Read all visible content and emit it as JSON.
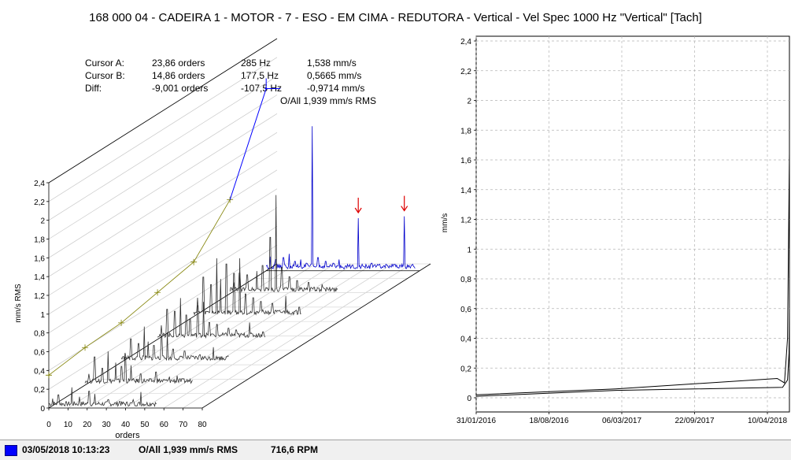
{
  "title": "168 000 04 - CADEIRA 1 - MOTOR - 7 - ESO - EM CIMA - REDUTORA - Vertical - Vel Spec 1000 Hz \"Vertical\" [Tach]",
  "cursors": [
    {
      "label": "Cursor A:",
      "order": "23,86 orders",
      "freq": "285 Hz",
      "amp": "1,538 mm/s"
    },
    {
      "label": "Cursor B:",
      "order": "14,86 orders",
      "freq": "177,5 Hz",
      "amp": "0,5665 mm/s"
    },
    {
      "label": "Diff:",
      "order": "-9,001 orders",
      "freq": "-107,5 Hz",
      "amp": "-0,9714 mm/s"
    }
  ],
  "overall_text": "O/All 1,939 mm/s RMS",
  "status_bar": {
    "date": "03/05/2018 10:13:23",
    "overall": "O/All 1,939 mm/s RMS",
    "rpm": "716,6 RPM",
    "swatch_color": "#0000ff"
  },
  "chart_data": [
    {
      "type": "line",
      "subtype": "waterfall-3d",
      "xlabel": "orders",
      "ylabel": "mm/s RMS",
      "x_ticks": [
        "0",
        "10",
        "20",
        "30",
        "40",
        "50",
        "60",
        "70",
        "80"
      ],
      "xlim": [
        0,
        80
      ],
      "y_ticks": [
        "0",
        "0,2",
        "0,4",
        "0,6",
        "0,8",
        "1",
        "1,2",
        "1,4",
        "1,6",
        "1,8",
        "2",
        "2,2",
        "2,4"
      ],
      "ylim": [
        0,
        2.4
      ],
      "grid": true,
      "active_color": "#0000cc",
      "inactive_color": "#303030",
      "overall_trend_color": "#808000",
      "highlight_color": "#0000ff",
      "cursor_marker_color": "#dd0000",
      "series": [
        {
          "peaks": [
            [
              2,
              0.1
            ],
            [
              5,
              0.14
            ],
            [
              12,
              0.22
            ],
            [
              16,
              0.12
            ],
            [
              21,
              0.18
            ],
            [
              24,
              0.15
            ],
            [
              31,
              0.09
            ],
            [
              37,
              0.07
            ],
            [
              44,
              0.09
            ],
            [
              48,
              0.17
            ],
            [
              54,
              0.05
            ]
          ]
        },
        {
          "peaks": [
            [
              2,
              0.12
            ],
            [
              5,
              0.3
            ],
            [
              9,
              0.18
            ],
            [
              12,
              0.36
            ],
            [
              16,
              0.24
            ],
            [
              19,
              0.2
            ],
            [
              21,
              0.3
            ],
            [
              24,
              0.21
            ],
            [
              29,
              0.12
            ],
            [
              37,
              0.14
            ],
            [
              44,
              0.09
            ],
            [
              48,
              0.1
            ]
          ]
        },
        {
          "peaks": [
            [
              2,
              0.1
            ],
            [
              5,
              0.25
            ],
            [
              9,
              0.2
            ],
            [
              12,
              0.38
            ],
            [
              14,
              0.22
            ],
            [
              17,
              0.18
            ],
            [
              21,
              0.28
            ],
            [
              24,
              0.32
            ],
            [
              27,
              0.14
            ],
            [
              33,
              0.12
            ],
            [
              41,
              0.08
            ],
            [
              48,
              0.16
            ],
            [
              55,
              0.06
            ]
          ]
        },
        {
          "peaks": [
            [
              2,
              0.15
            ],
            [
              5,
              0.32
            ],
            [
              9,
              0.3
            ],
            [
              12,
              0.44
            ],
            [
              15,
              0.26
            ],
            [
              17,
              0.22
            ],
            [
              21,
              0.36
            ],
            [
              24,
              0.4
            ],
            [
              27,
              0.18
            ],
            [
              31,
              0.16
            ],
            [
              37,
              0.12
            ],
            [
              41,
              0.1
            ],
            [
              48,
              0.18
            ],
            [
              55,
              0.08
            ]
          ]
        },
        {
          "peaks": [
            [
              2,
              0.2
            ],
            [
              5,
              0.42
            ],
            [
              9,
              0.34
            ],
            [
              12,
              0.62
            ],
            [
              14,
              0.4
            ],
            [
              17,
              0.56
            ],
            [
              21,
              0.46
            ],
            [
              24,
              0.62
            ],
            [
              27,
              0.24
            ],
            [
              31,
              0.2
            ],
            [
              35,
              0.16
            ],
            [
              41,
              0.14
            ],
            [
              48,
              0.22
            ],
            [
              55,
              0.1
            ]
          ]
        },
        {
          "peaks": [
            [
              2,
              0.12
            ],
            [
              5,
              0.22
            ],
            [
              9,
              0.2
            ],
            [
              14,
              0.24
            ],
            [
              17,
              0.3
            ],
            [
              21,
              0.6
            ],
            [
              24,
              1.05
            ],
            [
              27,
              0.28
            ],
            [
              31,
              0.18
            ],
            [
              35,
              0.14
            ],
            [
              41,
              0.12
            ],
            [
              48,
              0.1
            ]
          ]
        },
        {
          "active": true,
          "peaks": [
            [
              2,
              0.15
            ],
            [
              5,
              0.12
            ],
            [
              9,
              0.14
            ],
            [
              12,
              0.18
            ],
            [
              15,
              0.1
            ],
            [
              18,
              0.12
            ],
            [
              21,
              0.08
            ],
            [
              24,
              1.54
            ],
            [
              27,
              0.14
            ],
            [
              31,
              0.1
            ],
            [
              35,
              0.08
            ],
            [
              38,
              0.12
            ],
            [
              45,
              0.06
            ],
            [
              48,
              0.56
            ],
            [
              55,
              0.08
            ],
            [
              63,
              0.06
            ],
            [
              72,
              0.58
            ],
            [
              78,
              0.08
            ]
          ]
        }
      ],
      "overall_points": [
        0.35,
        0.4,
        0.42,
        0.5,
        0.58,
        1.0,
        1.94
      ],
      "cursor_marker_orders": [
        48,
        72
      ]
    },
    {
      "type": "line",
      "subtype": "trend",
      "ylabel": "mm/s",
      "x_ticks": [
        "31/01/2016",
        "18/08/2016",
        "06/03/2017",
        "22/09/2017",
        "10/04/2018"
      ],
      "xlim": [
        "2016-01-31",
        "2018-05-03"
      ],
      "y_ticks": [
        "0",
        "0,2",
        "0,4",
        "0,6",
        "0,8",
        "1",
        "1,2",
        "1,4",
        "1,6",
        "1,8",
        "2",
        "2,2",
        "2,4"
      ],
      "ylim": [
        0,
        2.4
      ],
      "grid": true,
      "series": [
        {
          "points": [
            [
              "2016-01-31",
              0.02
            ],
            [
              "2017-02-01",
              0.06
            ],
            [
              "2018-04-01",
              0.13
            ],
            [
              "2018-04-20",
              0.1
            ],
            [
              "2018-04-28",
              0.4
            ],
            [
              "2018-05-03",
              1.64
            ]
          ]
        },
        {
          "points": [
            [
              "2016-01-31",
              0.01
            ],
            [
              "2017-02-01",
              0.05
            ],
            [
              "2018-04-15",
              0.07
            ],
            [
              "2018-04-28",
              0.12
            ],
            [
              "2018-05-02",
              0.3
            ],
            [
              "2018-05-03",
              0.59
            ]
          ]
        }
      ]
    }
  ]
}
